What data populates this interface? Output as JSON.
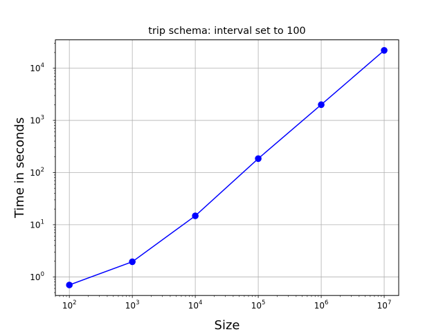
{
  "chart_data": {
    "type": "line",
    "title": "trip schema: interval set to 100",
    "xlabel": "Size",
    "ylabel": "Time in seconds",
    "x_scale": "log",
    "y_scale": "log",
    "xlim": [
      60,
      17000000
    ],
    "ylim": [
      0.44,
      35000
    ],
    "grid": true,
    "x_ticks": [
      {
        "value": 100,
        "base": "10",
        "exp": "2"
      },
      {
        "value": 1000,
        "base": "10",
        "exp": "3"
      },
      {
        "value": 10000,
        "base": "10",
        "exp": "4"
      },
      {
        "value": 100000,
        "base": "10",
        "exp": "5"
      },
      {
        "value": 1000000,
        "base": "10",
        "exp": "6"
      },
      {
        "value": 10000000,
        "base": "10",
        "exp": "7"
      }
    ],
    "y_ticks": [
      {
        "value": 1,
        "base": "10",
        "exp": "0"
      },
      {
        "value": 10,
        "base": "10",
        "exp": "1"
      },
      {
        "value": 100,
        "base": "10",
        "exp": "2"
      },
      {
        "value": 1000,
        "base": "10",
        "exp": "3"
      },
      {
        "value": 10000,
        "base": "10",
        "exp": "4"
      }
    ],
    "series": [
      {
        "color": "#0000ff",
        "marker": "circle",
        "x": [
          100,
          1000,
          10000,
          100000,
          1000000,
          10000000
        ],
        "y": [
          0.7,
          1.95,
          14.8,
          185,
          2000,
          22000
        ]
      }
    ]
  }
}
